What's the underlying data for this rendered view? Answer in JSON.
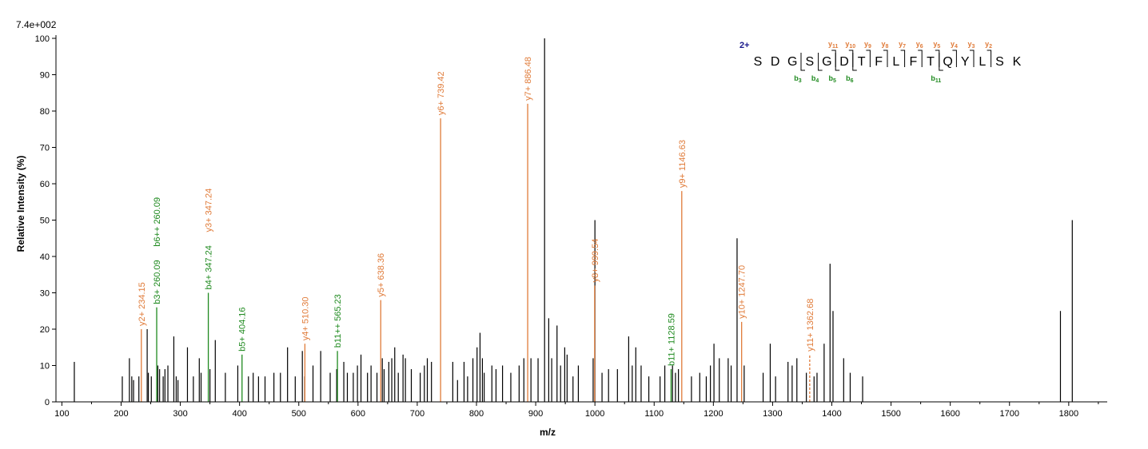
{
  "chart_data": {
    "type": "bar",
    "max_intensity_label": "7.4e+002",
    "xlabel": "m/z",
    "ylabel": "Relative   Intensity (%)",
    "xlim": [
      90,
      1865
    ],
    "ylim": [
      0,
      100
    ],
    "x_ticks": [
      100,
      200,
      300,
      400,
      500,
      600,
      700,
      800,
      900,
      1000,
      1100,
      1200,
      1300,
      1400,
      1500,
      1600,
      1700,
      1800
    ],
    "y_ticks": [
      0,
      10,
      20,
      30,
      40,
      50,
      60,
      70,
      80,
      90,
      100
    ],
    "colors": {
      "unassigned": "#000000",
      "y_ion": "#e07b39",
      "b_ion": "#1f8a1f",
      "charge": "#1a1a8c"
    },
    "peaks": [
      [
        121,
        11
      ],
      [
        202,
        7
      ],
      [
        214,
        12
      ],
      [
        218,
        7
      ],
      [
        221,
        6
      ],
      [
        230,
        7
      ],
      [
        244,
        20
      ],
      [
        246,
        8
      ],
      [
        251,
        7
      ],
      [
        262,
        10
      ],
      [
        265,
        9
      ],
      [
        271,
        7
      ],
      [
        274,
        9
      ],
      [
        279,
        10
      ],
      [
        289,
        18
      ],
      [
        293,
        7
      ],
      [
        296,
        6
      ],
      [
        312,
        15
      ],
      [
        322,
        7
      ],
      [
        332,
        12
      ],
      [
        335,
        8
      ],
      [
        350,
        9
      ],
      [
        359,
        17
      ],
      [
        376,
        8
      ],
      [
        397,
        10
      ],
      [
        415,
        7
      ],
      [
        423,
        8
      ],
      [
        432,
        7
      ],
      [
        443,
        7
      ],
      [
        458,
        8
      ],
      [
        469,
        8
      ],
      [
        481,
        15
      ],
      [
        494,
        7
      ],
      [
        506,
        14
      ],
      [
        510,
        7
      ],
      [
        524,
        10
      ],
      [
        537,
        14
      ],
      [
        553,
        8
      ],
      [
        564,
        9
      ],
      [
        576,
        11
      ],
      [
        582,
        8
      ],
      [
        592,
        8
      ],
      [
        599,
        10
      ],
      [
        605,
        13
      ],
      [
        616,
        8
      ],
      [
        622,
        10
      ],
      [
        632,
        8
      ],
      [
        641,
        12
      ],
      [
        644,
        9
      ],
      [
        652,
        11
      ],
      [
        657,
        12
      ],
      [
        662,
        15
      ],
      [
        668,
        8
      ],
      [
        676,
        13
      ],
      [
        680,
        12
      ],
      [
        690,
        9
      ],
      [
        705,
        8
      ],
      [
        712,
        10
      ],
      [
        717,
        12
      ],
      [
        724,
        11
      ],
      [
        760,
        11
      ],
      [
        768,
        6
      ],
      [
        779,
        11
      ],
      [
        785,
        7
      ],
      [
        794,
        12
      ],
      [
        801,
        15
      ],
      [
        806,
        19
      ],
      [
        810,
        12
      ],
      [
        813,
        8
      ],
      [
        826,
        10
      ],
      [
        833,
        9
      ],
      [
        844,
        10
      ],
      [
        858,
        8
      ],
      [
        872,
        10
      ],
      [
        880,
        12
      ],
      [
        892,
        12
      ],
      [
        904,
        12
      ],
      [
        915,
        100
      ],
      [
        922,
        23
      ],
      [
        927,
        12
      ],
      [
        936,
        21
      ],
      [
        942,
        10
      ],
      [
        949,
        15
      ],
      [
        953,
        13
      ],
      [
        963,
        7
      ],
      [
        972,
        10
      ],
      [
        997,
        12
      ],
      [
        1000,
        50
      ],
      [
        1012,
        8
      ],
      [
        1023,
        9
      ],
      [
        1038,
        9
      ],
      [
        1057,
        18
      ],
      [
        1063,
        10
      ],
      [
        1069,
        15
      ],
      [
        1078,
        10
      ],
      [
        1091,
        7
      ],
      [
        1110,
        7
      ],
      [
        1118,
        10
      ],
      [
        1131,
        10
      ],
      [
        1136,
        8
      ],
      [
        1141,
        9
      ],
      [
        1163,
        7
      ],
      [
        1177,
        8
      ],
      [
        1188,
        7
      ],
      [
        1195,
        10
      ],
      [
        1201,
        16
      ],
      [
        1210,
        12
      ],
      [
        1225,
        12
      ],
      [
        1230,
        10
      ],
      [
        1240,
        45
      ],
      [
        1252,
        10
      ],
      [
        1284,
        8
      ],
      [
        1296,
        16
      ],
      [
        1305,
        7
      ],
      [
        1326,
        11
      ],
      [
        1333,
        10
      ],
      [
        1341,
        12
      ],
      [
        1357,
        8
      ],
      [
        1370,
        7
      ],
      [
        1375,
        8
      ],
      [
        1387,
        16
      ],
      [
        1397,
        38
      ],
      [
        1402,
        25
      ],
      [
        1420,
        12
      ],
      [
        1431,
        8
      ],
      [
        1452,
        7
      ],
      [
        1786,
        25
      ],
      [
        1806,
        50
      ]
    ],
    "annotated_peaks": [
      {
        "x": 234.15,
        "y": 20,
        "ion": "y",
        "label": "y2+ 234.15"
      },
      {
        "x": 260.09,
        "y": 26,
        "ion": "b",
        "label": "b3+ 260.09"
      },
      {
        "x": 260.09,
        "y": 26,
        "ion": "b",
        "label": "b6++ 260.09",
        "stacked": true
      },
      {
        "x": 347.24,
        "y": 30,
        "ion": "b",
        "label": "b4+ 347.24"
      },
      {
        "x": 347.24,
        "y": 30,
        "ion": "y",
        "label": "y3+ 347.24",
        "stacked": true
      },
      {
        "x": 404.16,
        "y": 13,
        "ion": "b",
        "label": "b5+ 404.16"
      },
      {
        "x": 510.3,
        "y": 16,
        "ion": "y",
        "label": "y4+ 510.30"
      },
      {
        "x": 565.23,
        "y": 14,
        "ion": "b",
        "label": "b11++ 565.23"
      },
      {
        "x": 638.36,
        "y": 28,
        "ion": "y",
        "label": "y5+ 638.36"
      },
      {
        "x": 739.42,
        "y": 78,
        "ion": "y",
        "label": "y6+ 739.42"
      },
      {
        "x": 886.48,
        "y": 82,
        "ion": "y",
        "label": "y7+ 886.48"
      },
      {
        "x": 999.54,
        "y": 32,
        "ion": "y",
        "label": "y8+ 999.54"
      },
      {
        "x": 1128.59,
        "y": 9,
        "ion": "b",
        "label": "b11+ 1128.59"
      },
      {
        "x": 1146.63,
        "y": 58,
        "ion": "y",
        "label": "y9+ 1146.63"
      },
      {
        "x": 1247.7,
        "y": 22,
        "ion": "y",
        "label": "y10+ 1247.70"
      },
      {
        "x": 1362.68,
        "y": 13,
        "ion": "y",
        "label": "y11+ 1362.68",
        "dashed": true
      }
    ]
  },
  "sequence": {
    "charge_label": "2+",
    "residues": [
      "S",
      "D",
      "G",
      "S",
      "G",
      "D",
      "T",
      "F",
      "L",
      "F",
      "T",
      "Q",
      "Y",
      "L",
      "S",
      "K"
    ],
    "y_ions": [
      {
        "ion": "y",
        "num": "11",
        "after": 4
      },
      {
        "ion": "y",
        "num": "10",
        "after": 5
      },
      {
        "ion": "y",
        "num": "9",
        "after": 6
      },
      {
        "ion": "y",
        "num": "8",
        "after": 7
      },
      {
        "ion": "y",
        "num": "7",
        "after": 8
      },
      {
        "ion": "y",
        "num": "6",
        "after": 9
      },
      {
        "ion": "y",
        "num": "5",
        "after": 10
      },
      {
        "ion": "y",
        "num": "4",
        "after": 11
      },
      {
        "ion": "y",
        "num": "3",
        "after": 12
      },
      {
        "ion": "y",
        "num": "2",
        "after": 13
      }
    ],
    "b_ions": [
      {
        "ion": "b",
        "num": "3",
        "after": 2
      },
      {
        "ion": "b",
        "num": "4",
        "after": 3
      },
      {
        "ion": "b",
        "num": "5",
        "after": 4
      },
      {
        "ion": "b",
        "num": "6",
        "after": 5
      },
      {
        "ion": "b",
        "num": "11",
        "after": 10
      }
    ]
  }
}
